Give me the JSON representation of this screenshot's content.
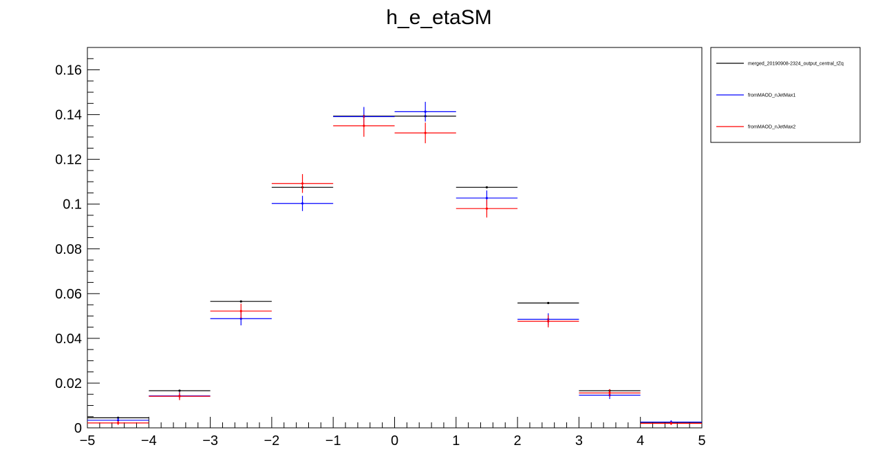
{
  "chart_data": {
    "type": "scatter",
    "title": "h_e_etaSM",
    "xlabel": "",
    "ylabel": "",
    "xlim": [
      -5,
      5
    ],
    "ylim": [
      0,
      0.17
    ],
    "x_ticks": [
      -5,
      -4,
      -3,
      -2,
      -1,
      0,
      1,
      2,
      3,
      4,
      5
    ],
    "x_tick_labels": [
      "−5",
      "−4",
      "−3",
      "−2",
      "−1",
      "0",
      "1",
      "2",
      "3",
      "4",
      "5"
    ],
    "y_ticks": [
      0,
      0.02,
      0.04,
      0.06,
      0.08,
      0.1,
      0.12,
      0.14,
      0.16
    ],
    "y_tick_labels": [
      "0",
      "0.02",
      "0.04",
      "0.06",
      "0.08",
      "0.1",
      "0.12",
      "0.14",
      "0.16"
    ],
    "bin_edges": [
      -5,
      -4,
      -3,
      -2,
      -1,
      0,
      1,
      2,
      3,
      4,
      5
    ],
    "x": [
      -4.5,
      -3.5,
      -2.5,
      -1.5,
      -0.5,
      0.5,
      1.5,
      2.5,
      3.5,
      4.5
    ],
    "legend_position": "top-right, outside plot",
    "grid": false,
    "series": [
      {
        "name": "merged_20190908-2324_output_central_tZq",
        "color": "#000000",
        "values": [
          0.0045,
          0.0166,
          0.0565,
          0.1075,
          0.1393,
          0.1393,
          0.1075,
          0.0558,
          0.0166,
          0.0024
        ],
        "errors": [
          0.0003,
          0.0004,
          0.0004,
          0.0004,
          0.0004,
          0.0004,
          0.0004,
          0.0004,
          0.0004,
          0.0003
        ]
      },
      {
        "name": "fromMAOD_nJetMax1",
        "color": "#0000ff",
        "values": [
          0.0034,
          0.0143,
          0.0488,
          0.1003,
          0.1391,
          0.1413,
          0.1027,
          0.0485,
          0.0146,
          0.0026
        ],
        "errors": [
          0.0011,
          0.0017,
          0.003,
          0.0034,
          0.0043,
          0.0044,
          0.0034,
          0.0027,
          0.0017,
          0.0008
        ]
      },
      {
        "name": "fromMAOD_nJetMax2",
        "color": "#ff0000",
        "values": [
          0.0022,
          0.0141,
          0.0522,
          0.1092,
          0.135,
          0.1318,
          0.098,
          0.0476,
          0.0156,
          0.002
        ],
        "errors": [
          0.0009,
          0.0017,
          0.0033,
          0.0042,
          0.0049,
          0.0046,
          0.004,
          0.0027,
          0.0017,
          0.0007
        ]
      }
    ]
  }
}
